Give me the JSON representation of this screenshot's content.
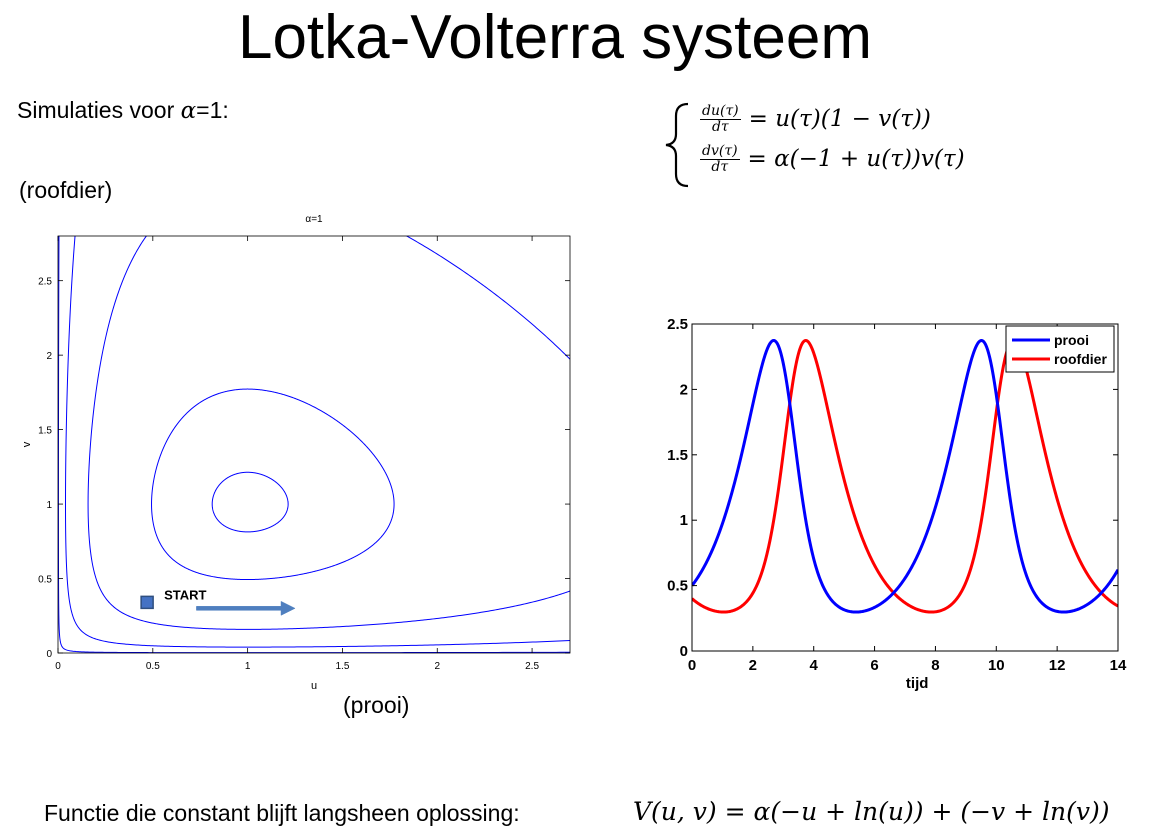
{
  "title": "Lotka-Volterra systeem",
  "subtitle": {
    "prefix": "Simulaties voor ",
    "symbol": "α",
    "suffix": "=1:"
  },
  "labels": {
    "predator": "(roofdier)",
    "prey": "(prooi)"
  },
  "equations": {
    "eq1_num": "du(τ)",
    "eq1_den": "dτ",
    "eq1_rhs": "= u(τ)(1 − v(τ))",
    "eq2_num": "dv(τ)",
    "eq2_den": "dτ",
    "eq2_rhs": "= α(−1 + u(τ))v(τ)"
  },
  "bottom": {
    "text": "Functie die constant blijft langsheen oplossing:",
    "formula": "V(u, v) = α(−u + ln(u)) + (−v + ln(v))"
  },
  "colors": {
    "orbit": "#0000ff",
    "start_marker": "#4472c4",
    "arrow": "#4f7fbf",
    "prey": "#0000ff",
    "predator": "#ff0000"
  },
  "chart_data": [
    {
      "type": "line",
      "title": "α=1",
      "xlabel": "u",
      "ylabel": "v",
      "xlim": [
        0,
        2.7
      ],
      "ylim": [
        0,
        2.8
      ],
      "xticks": [
        "0",
        "0.5",
        "1",
        "1.5",
        "2",
        "2.5"
      ],
      "yticks": [
        "0",
        "0.5",
        "1",
        "1.5",
        "2",
        "2.5"
      ],
      "grid": false,
      "level_curves": [
        2.02,
        2.2,
        3.0,
        4.27,
        7.06
      ],
      "annotation": {
        "text": "START",
        "marker": [
          0.47,
          0.34
        ],
        "arrow_from": [
          0.73,
          0.3
        ],
        "arrow_to": [
          1.25,
          0.3
        ]
      }
    },
    {
      "type": "line",
      "xlabel": "tijd",
      "ylabel": "",
      "xlim": [
        0,
        14
      ],
      "ylim": [
        0,
        2.5
      ],
      "xticks": [
        "0",
        "2",
        "4",
        "6",
        "8",
        "10",
        "12",
        "14"
      ],
      "yticks": [
        "0",
        "0.5",
        "1",
        "1.5",
        "2",
        "2.5"
      ],
      "legend_position": "top-right",
      "initial": {
        "u": 0.5,
        "v": 0.4
      },
      "series": [
        {
          "name": "prooi",
          "color": "#0000ff"
        },
        {
          "name": "roofdier",
          "color": "#ff0000"
        }
      ]
    }
  ]
}
